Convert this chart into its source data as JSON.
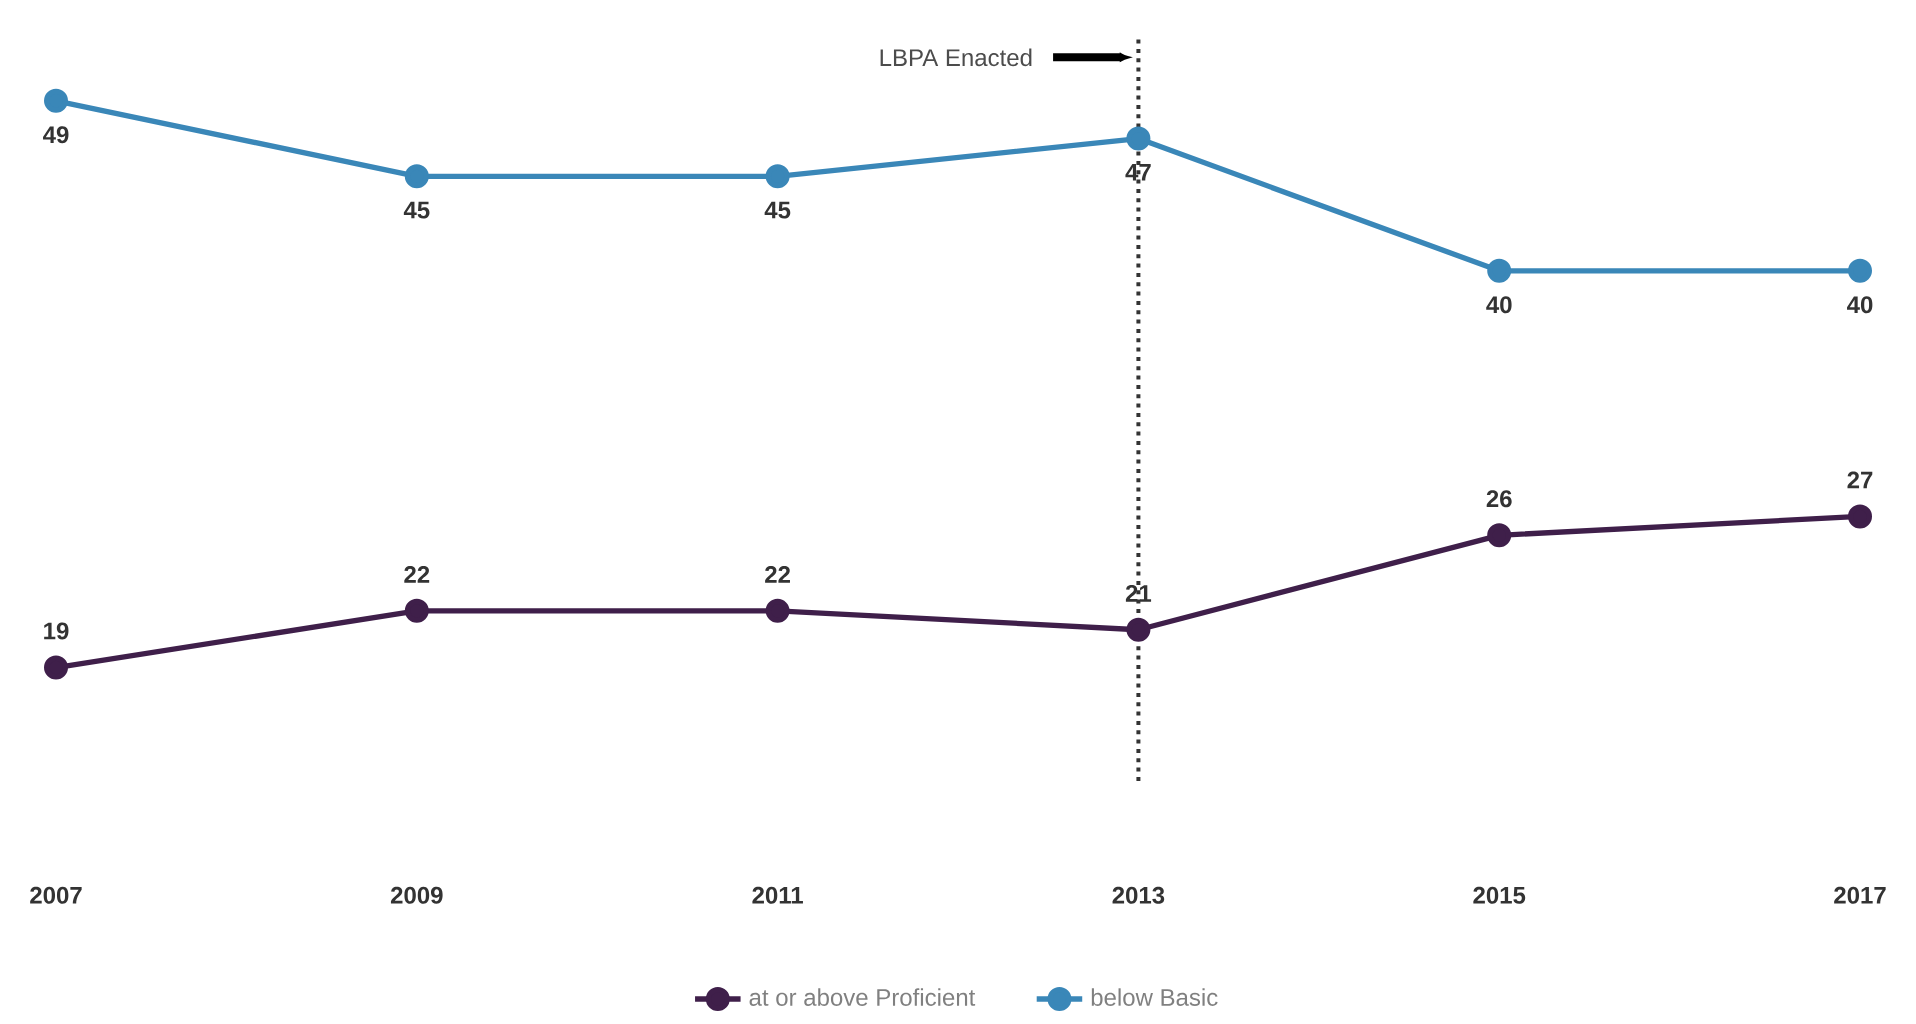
{
  "chart_data": {
    "type": "line",
    "x": [
      2007,
      2009,
      2011,
      2013,
      2015,
      2017
    ],
    "xlim": [
      2007,
      2017
    ],
    "xticks": [
      2007,
      2009,
      2011,
      2013,
      2015,
      2017
    ],
    "tick_labels": "x",
    "marker": "circle",
    "line_style": "solid",
    "data_labels": true,
    "legend": "bottom",
    "series": [
      {
        "name": "at or above Proficient",
        "color": "#3f1f4a",
        "values": [
          19,
          22,
          22,
          21,
          26,
          27
        ]
      },
      {
        "name": "below Basic",
        "color": "#3a87b8",
        "values": [
          49,
          45,
          45,
          47,
          40,
          40
        ]
      }
    ],
    "ref_lines": [
      {
        "axis": "x",
        "value": 2013,
        "label": "LBPA Enacted",
        "line_style": "dotted",
        "color": "#333333"
      }
    ]
  }
}
